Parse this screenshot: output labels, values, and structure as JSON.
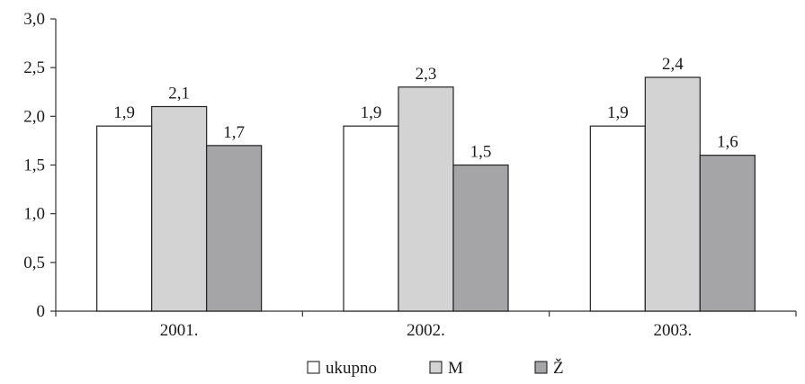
{
  "chart_data": {
    "type": "bar",
    "title": "",
    "xlabel": "",
    "ylabel": "",
    "categories": [
      "2001.",
      "2002.",
      "2003."
    ],
    "ylim": [
      0,
      3.0
    ],
    "yticks": [
      0,
      0.5,
      1.0,
      1.5,
      2.0,
      2.5,
      3.0
    ],
    "ytick_labels": [
      "0",
      "0,5",
      "1,0",
      "1,5",
      "2,0",
      "2,5",
      "3,0"
    ],
    "grid": false,
    "legend_position": "bottom",
    "series": [
      {
        "name": "ukupno",
        "color": "#ffffff",
        "values": [
          1.9,
          1.9,
          1.9
        ],
        "labels": [
          "1,9",
          "1,9",
          "1,9"
        ]
      },
      {
        "name": "M",
        "color": "#d3d3d3",
        "values": [
          2.1,
          2.3,
          2.4
        ],
        "labels": [
          "2,1",
          "2,3",
          "2,4"
        ]
      },
      {
        "name": "Ž",
        "color": "#a5a5a8",
        "values": [
          1.7,
          1.5,
          1.6
        ],
        "labels": [
          "1,7",
          "1,5",
          "1,6"
        ]
      }
    ]
  }
}
